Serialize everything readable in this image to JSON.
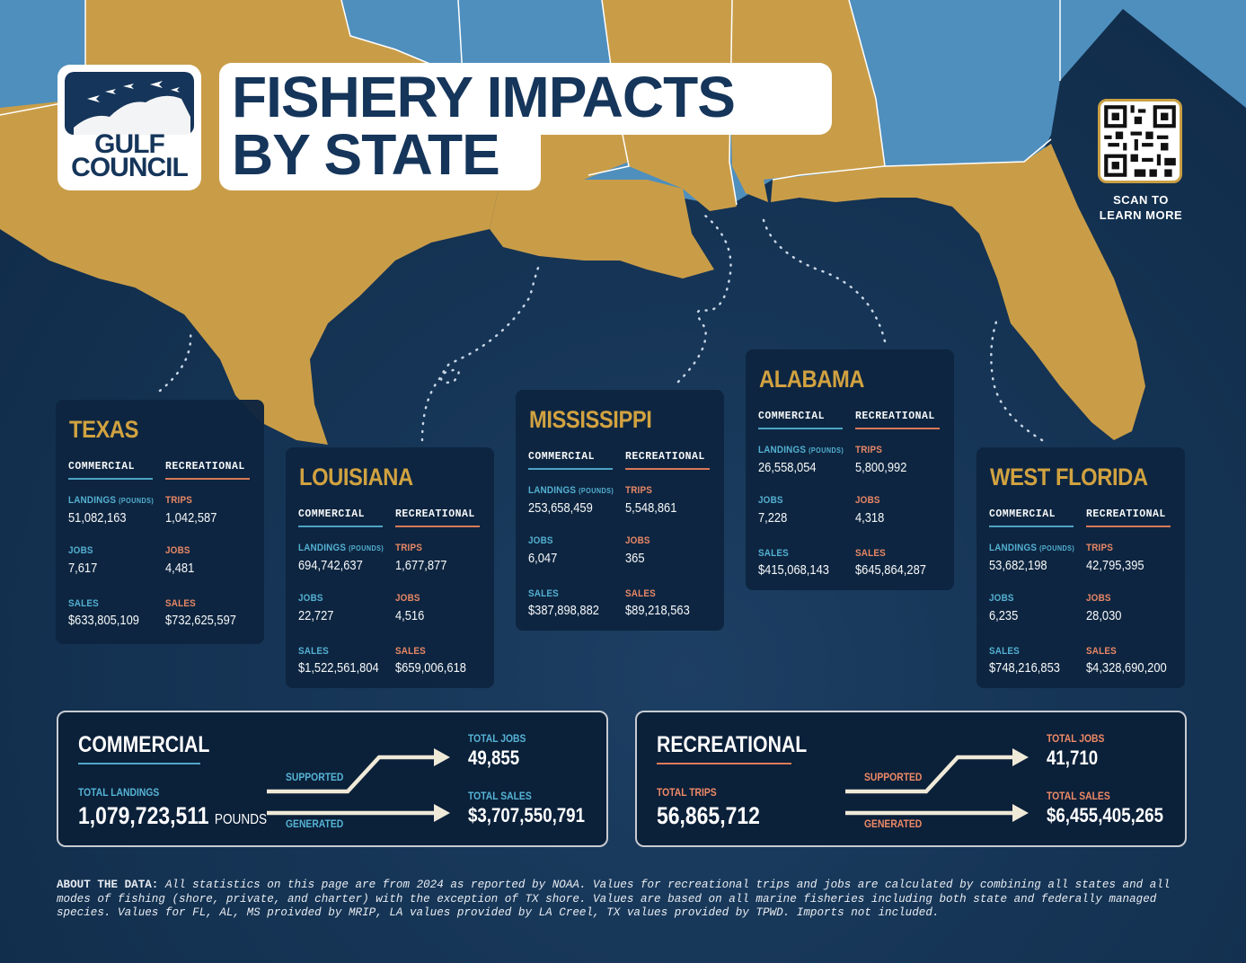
{
  "logo": {
    "line1": "GULF",
    "line2": "COUNCIL"
  },
  "title": {
    "line1": "FISHERY IMPACTS",
    "line2": "BY STATE"
  },
  "qr": {
    "label_line1": "SCAN TO",
    "label_line2": "LEARN MORE"
  },
  "labels": {
    "commercial": "COMMERCIAL",
    "recreational": "RECREATIONAL",
    "landings": "LANDINGS",
    "pounds": "(POUNDS)",
    "trips": "TRIPS",
    "jobs": "JOBS",
    "sales": "SALES"
  },
  "states": [
    {
      "name": "TEXAS",
      "com_landings": "51,082,163",
      "com_jobs": "7,617",
      "com_sales": "$633,805,109",
      "rec_trips": "1,042,587",
      "rec_jobs": "4,481",
      "rec_sales": "$732,625,597"
    },
    {
      "name": "LOUISIANA",
      "com_landings": "694,742,637",
      "com_jobs": "22,727",
      "com_sales": "$1,522,561,804",
      "rec_trips": "1,677,877",
      "rec_jobs": "4,516",
      "rec_sales": "$659,006,618"
    },
    {
      "name": "MISSISSIPPI",
      "com_landings": "253,658,459",
      "com_jobs": "6,047",
      "com_sales": "$387,898,882",
      "rec_trips": "5,548,861",
      "rec_jobs": "365",
      "rec_sales": "$89,218,563"
    },
    {
      "name": "ALABAMA",
      "com_landings": "26,558,054",
      "com_jobs": "7,228",
      "com_sales": "$415,068,143",
      "rec_trips": "5,800,992",
      "rec_jobs": "4,318",
      "rec_sales": "$645,864,287"
    },
    {
      "name": "WEST FLORIDA",
      "com_landings": "53,682,198",
      "com_jobs": "6,235",
      "com_sales": "$748,216,853",
      "rec_trips": "42,795,395",
      "rec_jobs": "28,030",
      "rec_sales": "$4,328,690,200"
    }
  ],
  "summary": {
    "commercial": {
      "title": "COMMERCIAL",
      "main_label": "TOTAL LANDINGS",
      "main_value": "1,079,723,511",
      "main_unit": "POUNDS",
      "supported": "SUPPORTED",
      "generated": "GENERATED",
      "jobs_label": "TOTAL JOBS",
      "jobs_value": "49,855",
      "sales_label": "TOTAL SALES",
      "sales_value": "$3,707,550,791"
    },
    "recreational": {
      "title": "RECREATIONAL",
      "main_label": "TOTAL TRIPS",
      "main_value": "56,865,712",
      "supported": "SUPPORTED",
      "generated": "GENERATED",
      "jobs_label": "TOTAL JOBS",
      "jobs_value": "41,710",
      "sales_label": "TOTAL SALES",
      "sales_value": "$6,455,405,265"
    }
  },
  "about": {
    "heading": "ABOUT THE DATA:",
    "text": "All statistics on this page are from 2024 as reported by NOAA. Values for recreational trips and jobs are calculated by combining all states and all modes of fishing (shore, private, and charter) with the exception of TX shore. Values are based on all marine fisheries including both state and federally managed species. Values for FL, AL, MS proivded by MRIP, LA values provided by LA Creel, TX values provided by TPWD. Imports not included."
  },
  "colors": {
    "land_gulf": "#c99d48",
    "land_other": "#4f8fbd",
    "water": "#163556",
    "card": "#0d2540",
    "gold": "#d8a640",
    "commercial": "#56b4d6",
    "recreational": "#ef8a66",
    "navy": "#15355a"
  }
}
